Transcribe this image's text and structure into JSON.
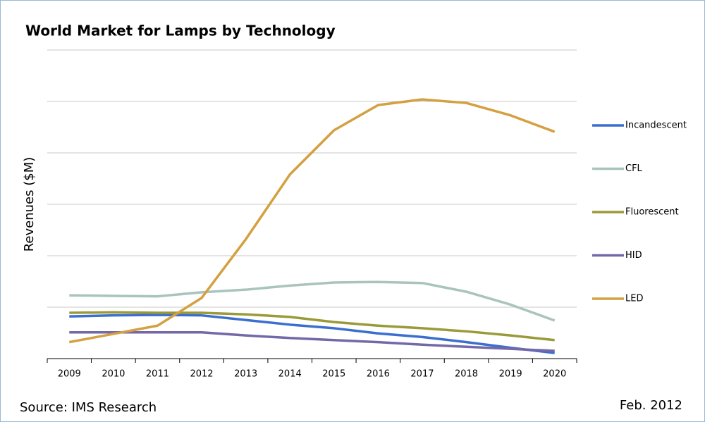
{
  "chart_data": {
    "type": "line",
    "title": "World Market for Lamps by Technology",
    "y_label": "Revenues ($M)",
    "categories": [
      "2009",
      "2010",
      "2011",
      "2012",
      "2013",
      "2014",
      "2015",
      "2016",
      "2017",
      "2018",
      "2019",
      "2020"
    ],
    "series": [
      {
        "name": "Incandescent",
        "color": "#3a6fd0",
        "values": [
          0.82,
          0.84,
          0.85,
          0.84,
          0.75,
          0.66,
          0.59,
          0.49,
          0.42,
          0.32,
          0.21,
          0.11
        ]
      },
      {
        "name": "CFL",
        "color": "#a9c4bd",
        "values": [
          1.23,
          1.22,
          1.21,
          1.29,
          1.34,
          1.42,
          1.48,
          1.49,
          1.47,
          1.3,
          1.05,
          0.74
        ]
      },
      {
        "name": "Fluorescent",
        "color": "#9a9a3a",
        "values": [
          0.89,
          0.9,
          0.89,
          0.89,
          0.86,
          0.81,
          0.71,
          0.64,
          0.59,
          0.53,
          0.45,
          0.36
        ]
      },
      {
        "name": "HID",
        "color": "#7468a8",
        "values": [
          0.51,
          0.51,
          0.51,
          0.51,
          0.45,
          0.4,
          0.36,
          0.32,
          0.27,
          0.23,
          0.19,
          0.15
        ]
      },
      {
        "name": "LED",
        "color": "#d4a040",
        "values": [
          0.32,
          0.48,
          0.64,
          1.18,
          2.32,
          3.58,
          4.44,
          4.93,
          5.04,
          4.97,
          4.73,
          4.41
        ]
      }
    ],
    "ylim": [
      0,
      6
    ],
    "yticks": [
      0,
      1,
      2,
      3,
      4,
      5,
      6
    ],
    "grid": true,
    "legend": "right",
    "source": "Source: IMS Research",
    "date_note": "Feb. 2012"
  }
}
